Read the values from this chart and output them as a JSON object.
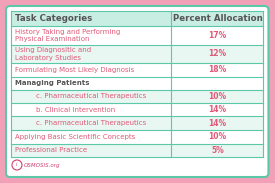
{
  "header": [
    "Task Categories",
    "Percent Allocation"
  ],
  "rows": [
    [
      "History Taking and Performing\nPhysical Examination",
      "17%"
    ],
    [
      "Using Diagnositic and\nLaboratory Studies",
      "12%"
    ],
    [
      "Formulating Most Likely Diagnosis",
      "18%"
    ],
    [
      "Managing Patients",
      ""
    ],
    [
      "    c. Pharmaceutical Therapeutics",
      "10%"
    ],
    [
      "    b. Clinical Intervention",
      "14%"
    ],
    [
      "    c. Pharmaceutical Therapeutics",
      "14%"
    ],
    [
      "Applying Basic Scientific Concepts",
      "10%"
    ],
    [
      "Professional Practice",
      "5%"
    ]
  ],
  "bg_outer": "#f2a0b8",
  "bg_inner": "#ffffff",
  "header_bg": "#c8ede2",
  "alt_row_bg": "#e8f7f2",
  "header_text_color": "#555555",
  "category_text_color": "#e05a78",
  "managing_text_color": "#555555",
  "percent_text_color": "#e05a78",
  "border_color": "#5bc8a8",
  "watermark": "OSMOSIS.org",
  "watermark_color": "#d04070",
  "figsize": [
    2.75,
    1.83
  ],
  "dpi": 100
}
